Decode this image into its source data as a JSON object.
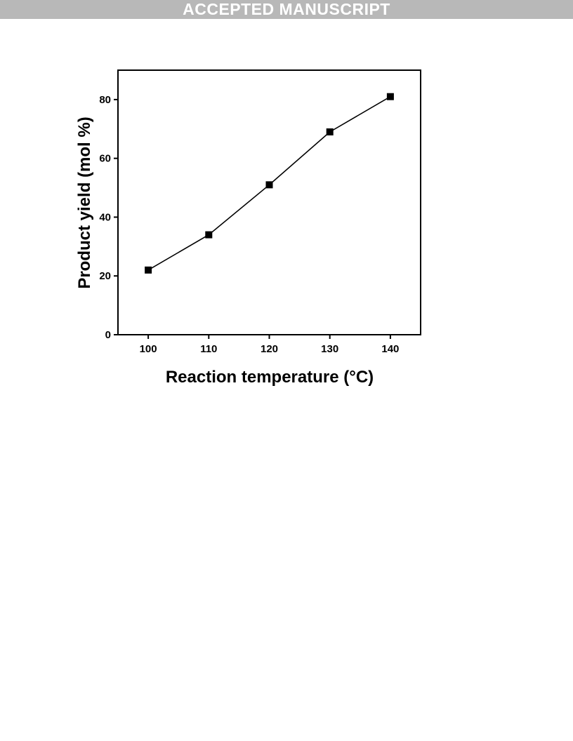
{
  "banner": {
    "text": "ACCEPTED MANUSCRIPT"
  },
  "chart_data": {
    "type": "line",
    "title": "",
    "xlabel": "Reaction temperature (°C)",
    "ylabel": "Product yield (mol %)",
    "x": [
      100,
      110,
      120,
      130,
      140
    ],
    "series": [
      {
        "values": [
          22,
          34,
          51,
          69,
          81
        ],
        "marker": "square",
        "color": "#000000"
      }
    ],
    "xlim": [
      95,
      145
    ],
    "ylim": [
      0,
      90
    ],
    "xticks": [
      100,
      110,
      120,
      130,
      140
    ],
    "yticks": [
      0,
      20,
      40,
      60,
      80
    ],
    "grid": false,
    "legend": "none"
  }
}
